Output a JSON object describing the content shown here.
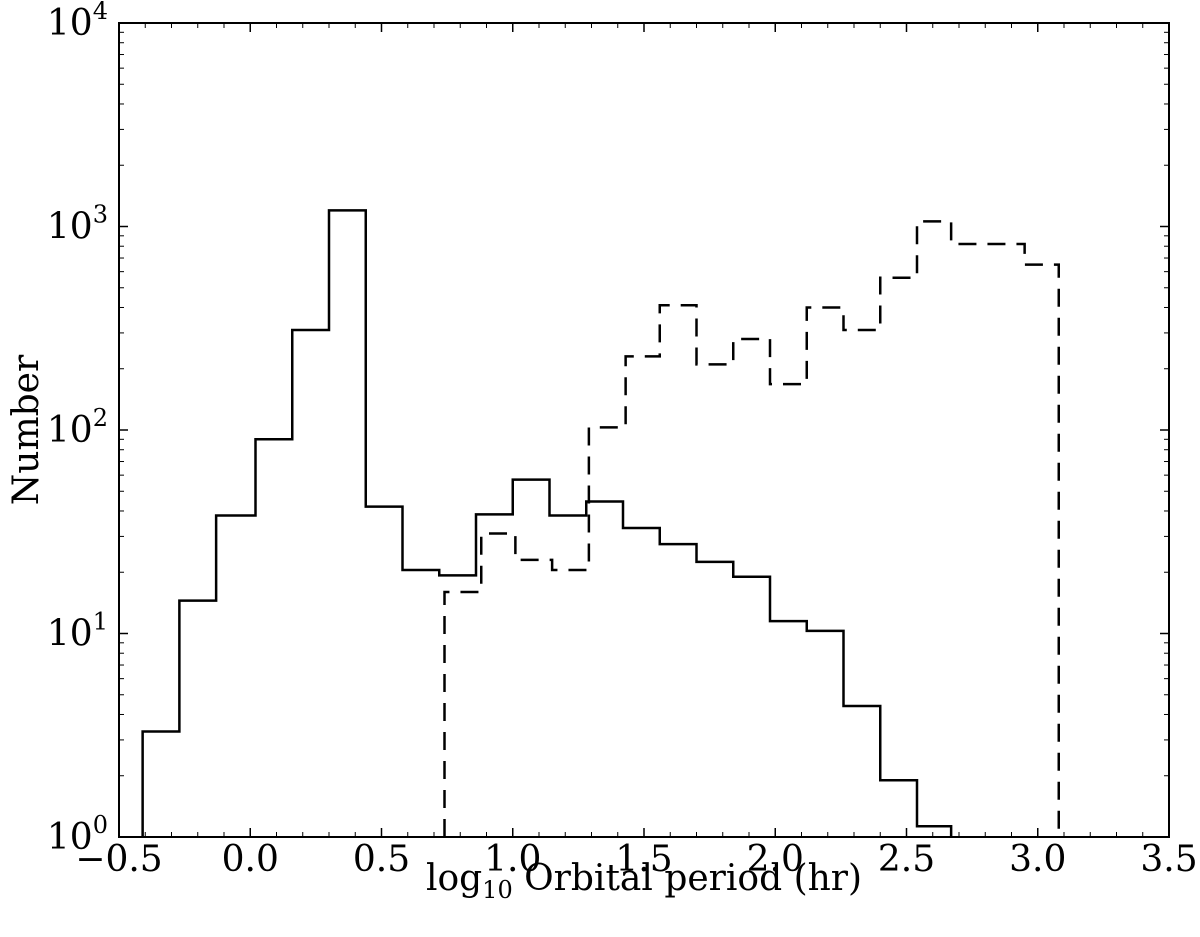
{
  "chart_data": {
    "type": "histogram",
    "title": "",
    "xlabel": {
      "prefix": "log",
      "subscript": "10",
      "suffix": " Orbital period (hr)"
    },
    "ylabel": "Number",
    "xlim": [
      -0.5,
      3.5
    ],
    "ylim": [
      1,
      10000
    ],
    "yscale": "log",
    "grid": false,
    "x_ticks": [
      -0.5,
      0.0,
      0.5,
      1.0,
      1.5,
      2.0,
      2.5,
      3.0,
      3.5
    ],
    "x_tick_labels": [
      "−0.5",
      "0.0",
      "0.5",
      "1.0",
      "1.5",
      "2.0",
      "2.5",
      "3.0",
      "3.5"
    ],
    "y_ticks": [
      {
        "value": 1,
        "base": "10",
        "exp": "0"
      },
      {
        "value": 10,
        "base": "10",
        "exp": "1"
      },
      {
        "value": 100,
        "base": "10",
        "exp": "2"
      },
      {
        "value": 1000,
        "base": "10",
        "exp": "3"
      },
      {
        "value": 10000,
        "base": "10",
        "exp": "4"
      }
    ],
    "series": [
      {
        "style": "solid",
        "edges": [
          -0.41,
          -0.27,
          -0.13,
          0.02,
          0.16,
          0.3,
          0.44,
          0.58,
          0.72,
          0.86,
          1.0,
          1.14,
          1.28,
          1.42,
          1.56,
          1.7,
          1.84,
          1.98,
          2.12,
          2.26,
          2.4,
          2.54,
          2.67
        ],
        "counts": [
          3.3,
          14.5,
          38,
          90,
          310,
          1200,
          42,
          20.5,
          19.3,
          38.5,
          57,
          38,
          44.5,
          33,
          27.5,
          22.5,
          19,
          11.5,
          10.3,
          4.4,
          1.9,
          1.13
        ]
      },
      {
        "style": "dashed",
        "edges": [
          0.74,
          0.88,
          1.01,
          1.15,
          1.29,
          1.43,
          1.56,
          1.7,
          1.84,
          1.98,
          2.12,
          2.26,
          2.4,
          2.54,
          2.67,
          2.81,
          2.95,
          3.08
        ],
        "counts": [
          16,
          31,
          23,
          20.5,
          103,
          230,
          410,
          210,
          280,
          168,
          400,
          310,
          560,
          1060,
          820,
          820,
          650
        ]
      }
    ]
  }
}
